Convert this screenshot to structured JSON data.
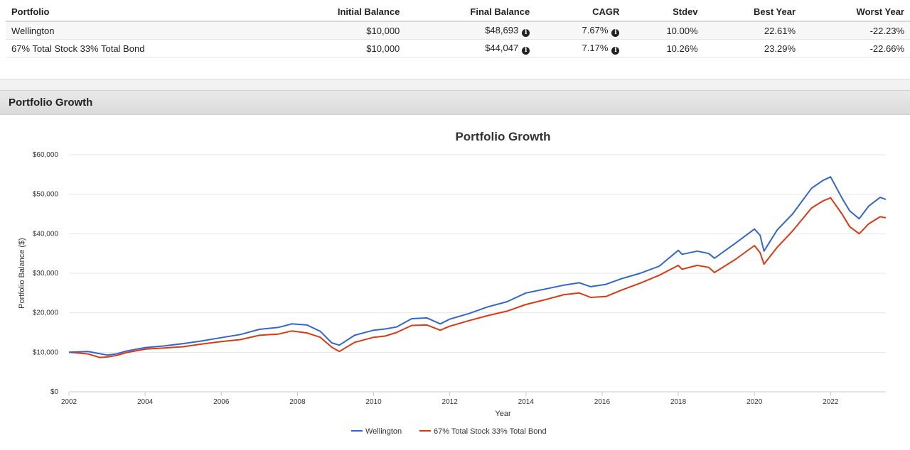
{
  "summary": {
    "headers": {
      "portfolio": "Portfolio",
      "initial": "Initial Balance",
      "final": "Final Balance",
      "cagr": "CAGR",
      "stdev": "Stdev",
      "best": "Best Year",
      "worst": "Worst Year"
    },
    "rows": [
      {
        "portfolio": "Wellington",
        "initial": "$10,000",
        "final": "$48,693",
        "cagr": "7.67%",
        "stdev": "10.00%",
        "best": "22.61%",
        "worst": "-22.23%"
      },
      {
        "portfolio": "67% Total Stock 33% Total Bond",
        "initial": "$10,000",
        "final": "$44,047",
        "cagr": "7.17%",
        "stdev": "10.26%",
        "best": "23.29%",
        "worst": "-22.66%"
      }
    ],
    "info_icon": "info-circle-icon"
  },
  "section": {
    "title": "Portfolio Growth"
  },
  "chart_data": {
    "type": "line",
    "title": "Portfolio Growth",
    "xlabel": "Year",
    "ylabel": "Portfolio Balance ($)",
    "xlim": [
      2002,
      2023.45
    ],
    "ylim": [
      0,
      60000
    ],
    "xticks": [
      2002,
      2004,
      2006,
      2008,
      2010,
      2012,
      2014,
      2016,
      2018,
      2020,
      2022
    ],
    "yticks": [
      0,
      10000,
      20000,
      30000,
      40000,
      50000,
      60000
    ],
    "ytick_labels": [
      "$0",
      "$10,000",
      "$20,000",
      "$30,000",
      "$40,000",
      "$50,000",
      "$60,000"
    ],
    "grid": true,
    "legend_position": "bottom-center",
    "series": [
      {
        "name": "Wellington",
        "color": "#3366cc",
        "x": [
          2002,
          2002.5,
          2003,
          2003.25,
          2003.5,
          2004,
          2004.5,
          2005,
          2005.5,
          2006,
          2006.5,
          2007,
          2007.5,
          2007.85,
          2008.25,
          2008.6,
          2008.9,
          2009.1,
          2009.5,
          2010,
          2010.3,
          2010.6,
          2011,
          2011.4,
          2011.75,
          2012,
          2012.5,
          2013,
          2013.5,
          2014,
          2014.5,
          2015,
          2015.4,
          2015.7,
          2016.1,
          2016.5,
          2017,
          2017.5,
          2018,
          2018.1,
          2018.5,
          2018.8,
          2018.95,
          2019.5,
          2020,
          2020.15,
          2020.25,
          2020.6,
          2021,
          2021.5,
          2021.8,
          2022,
          2022.3,
          2022.5,
          2022.75,
          2023,
          2023.3,
          2023.45
        ],
        "y": [
          10000,
          10200,
          9300,
          9600,
          10300,
          11200,
          11600,
          12200,
          12900,
          13700,
          14500,
          15800,
          16300,
          17200,
          16900,
          15300,
          12400,
          11800,
          14300,
          15600,
          15900,
          16400,
          18500,
          18700,
          17200,
          18400,
          19800,
          21500,
          22800,
          25000,
          26000,
          27000,
          27600,
          26600,
          27200,
          28600,
          30000,
          31800,
          35800,
          34800,
          35600,
          35000,
          33800,
          37600,
          41200,
          39600,
          35600,
          41000,
          45000,
          51500,
          53500,
          54400,
          49000,
          45800,
          43800,
          47000,
          49200,
          48693
        ]
      },
      {
        "name": "67% Total Stock 33% Total Bond",
        "color": "#dc3912",
        "x": [
          2002,
          2002.5,
          2002.8,
          2003,
          2003.25,
          2003.5,
          2004,
          2004.5,
          2005,
          2005.5,
          2006,
          2006.5,
          2007,
          2007.5,
          2007.85,
          2008.25,
          2008.6,
          2008.9,
          2009.1,
          2009.5,
          2010,
          2010.3,
          2010.6,
          2011,
          2011.4,
          2011.75,
          2012,
          2012.5,
          2013,
          2013.5,
          2014,
          2014.5,
          2015,
          2015.4,
          2015.7,
          2016.1,
          2016.5,
          2017,
          2017.5,
          2018,
          2018.1,
          2018.5,
          2018.8,
          2018.95,
          2019.5,
          2020,
          2020.15,
          2020.25,
          2020.6,
          2021,
          2021.5,
          2021.8,
          2022,
          2022.3,
          2022.5,
          2022.75,
          2023,
          2023.3,
          2023.45
        ],
        "y": [
          10000,
          9600,
          8700,
          8800,
          9200,
          9900,
          10800,
          11100,
          11400,
          12100,
          12700,
          13200,
          14300,
          14600,
          15400,
          14900,
          13800,
          11300,
          10200,
          12500,
          13800,
          14100,
          15000,
          16800,
          16900,
          15600,
          16600,
          18000,
          19300,
          20400,
          22100,
          23300,
          24600,
          25000,
          23900,
          24100,
          25700,
          27500,
          29500,
          32000,
          31000,
          32000,
          31500,
          30200,
          33500,
          37000,
          35200,
          32300,
          36600,
          40700,
          46500,
          48300,
          49100,
          45000,
          41800,
          40000,
          42500,
          44300,
          44047
        ]
      }
    ]
  }
}
